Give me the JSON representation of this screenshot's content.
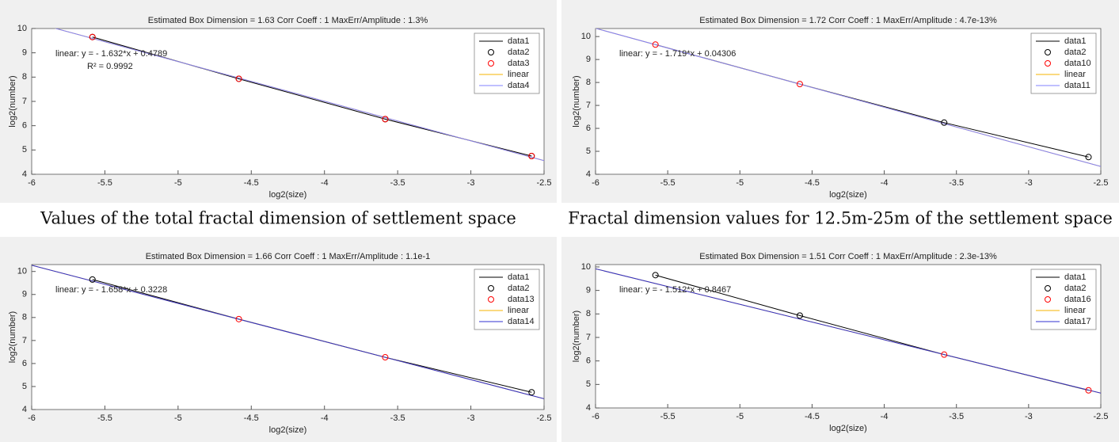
{
  "chart_data": [
    {
      "type": "line",
      "title": "Estimated Box Dimension =  1.63    Corr Coeff : 1    MaxErr/Amplitude : 1.3%",
      "xlabel": "log2(size)",
      "ylabel": "log2(number)",
      "annotations": [
        "linear: y = - 1.632*x + 0.4789",
        "R² = 0.9992"
      ],
      "caption": "Values of the total fractal dimension of settlement space",
      "xlim": [
        -6,
        -2.5
      ],
      "xticks": [
        -6,
        -5.5,
        -5,
        -4.5,
        -4,
        -3.5,
        -3,
        -2.5
      ],
      "ylim": [
        4,
        10
      ],
      "yticks": [
        4,
        5,
        6,
        7,
        8,
        9,
        10
      ],
      "legend": "upper right",
      "series": [
        {
          "name": "data1",
          "color": "#000000",
          "style": "line",
          "x": [
            -5.585,
            -4.585,
            -3.585,
            -2.585
          ],
          "values": [
            9.65,
            7.93,
            6.27,
            4.75
          ]
        },
        {
          "name": "data2",
          "color": "#000000",
          "style": "circle",
          "x": [
            -5.585,
            -4.585,
            -3.585,
            -2.585
          ],
          "values": [
            9.65,
            7.93,
            6.27,
            4.75
          ]
        },
        {
          "name": "data3",
          "color": "#ff0000",
          "style": "circle",
          "x": [
            -5.585,
            -4.585,
            -3.585,
            -2.585
          ],
          "values": [
            9.65,
            7.93,
            6.27,
            4.75
          ]
        },
        {
          "name": "linear",
          "color": "#f5b400",
          "style": "line",
          "x": [
            -6,
            -2.5
          ],
          "values": [
            10.27,
            4.56
          ]
        },
        {
          "name": "data4",
          "color": "#8080ff",
          "style": "line",
          "x": [
            -6,
            -2.5
          ],
          "values": [
            10.27,
            4.56
          ]
        }
      ]
    },
    {
      "type": "line",
      "title": "Estimated Box Dimension =  1.72    Corr Coeff : 1    MaxErr/Amplitude : 4.7e-13%",
      "xlabel": "log2(size)",
      "ylabel": "log2(number)",
      "annotations": [
        "linear: y = - 1.719*x + 0.04306"
      ],
      "caption": "Fractal dimension values for 12.5m-25m of the settlement space",
      "xlim": [
        -6,
        -2.5
      ],
      "xticks": [
        -6,
        -5.5,
        -5,
        -4.5,
        -4,
        -3.5,
        -3,
        -2.5
      ],
      "ylim": [
        4,
        10.35
      ],
      "yticks": [
        4,
        5,
        6,
        7,
        8,
        9,
        10
      ],
      "legend": "upper right",
      "series": [
        {
          "name": "data1",
          "color": "#000000",
          "style": "line",
          "x": [
            -5.585,
            -4.585,
            -3.585,
            -2.585
          ],
          "values": [
            9.65,
            7.93,
            6.25,
            4.75
          ]
        },
        {
          "name": "data2",
          "color": "#000000",
          "style": "circle",
          "x": [
            -3.585,
            -2.585
          ],
          "values": [
            6.25,
            4.75
          ]
        },
        {
          "name": "data10",
          "color": "#ff0000",
          "style": "circle",
          "x": [
            -5.585,
            -4.585
          ],
          "values": [
            9.65,
            7.93
          ]
        },
        {
          "name": "linear",
          "color": "#f5b400",
          "style": "line",
          "x": [
            -6,
            -2.5
          ],
          "values": [
            10.36,
            4.34
          ]
        },
        {
          "name": "data11",
          "color": "#8080ff",
          "style": "line",
          "x": [
            -6,
            -2.5
          ],
          "values": [
            10.36,
            4.34
          ]
        }
      ]
    },
    {
      "type": "line",
      "title": "Estimated Box Dimension =  1.66    Corr Coeff : 1    MaxErr/Amplitude : 1.1e-1",
      "xlabel": "log2(size)",
      "ylabel": "log2(number)",
      "annotations": [
        "linear: y = - 1.658*x + 0.3228"
      ],
      "xlim": [
        -6,
        -2.5
      ],
      "xticks": [
        -6,
        -5.5,
        -5,
        -4.5,
        -4,
        -3.5,
        -3,
        -2.5
      ],
      "ylim": [
        4,
        10.3
      ],
      "yticks": [
        4,
        5,
        6,
        7,
        8,
        9,
        10
      ],
      "legend": "upper right",
      "series": [
        {
          "name": "data1",
          "color": "#000000",
          "style": "line",
          "x": [
            -5.585,
            -4.585,
            -3.585,
            -2.585
          ],
          "values": [
            9.65,
            7.93,
            6.27,
            4.75
          ]
        },
        {
          "name": "data2",
          "color": "#000000",
          "style": "circle",
          "x": [
            -5.585,
            -2.585
          ],
          "values": [
            9.65,
            4.75
          ]
        },
        {
          "name": "data13",
          "color": "#ff0000",
          "style": "circle",
          "x": [
            -4.585,
            -3.585
          ],
          "values": [
            7.93,
            6.27
          ]
        },
        {
          "name": "linear",
          "color": "#f5b400",
          "style": "line",
          "x": [
            -6,
            -2.5
          ],
          "values": [
            10.27,
            4.47
          ]
        },
        {
          "name": "data14",
          "color": "#3030d0",
          "style": "line",
          "x": [
            -6,
            -2.5
          ],
          "values": [
            10.27,
            4.47
          ]
        }
      ]
    },
    {
      "type": "line",
      "title": "Estimated Box Dimension =  1.51    Corr Coeff : 1    MaxErr/Amplitude : 2.3e-13%",
      "xlabel": "log2(size)",
      "ylabel": "log2(number)",
      "annotations": [
        "linear: y = - 1.512*x + 0.8467"
      ],
      "xlim": [
        -6,
        -2.5
      ],
      "xticks": [
        -6,
        -5.5,
        -5,
        -4.5,
        -4,
        -3.5,
        -3,
        -2.5
      ],
      "ylim": [
        4,
        10.1
      ],
      "yticks": [
        4,
        5,
        6,
        7,
        8,
        9,
        10
      ],
      "legend": "upper right",
      "series": [
        {
          "name": "data1",
          "color": "#000000",
          "style": "line",
          "x": [
            -5.585,
            -4.585,
            -3.585,
            -2.585
          ],
          "values": [
            9.65,
            7.93,
            6.27,
            4.75
          ]
        },
        {
          "name": "data2",
          "color": "#000000",
          "style": "circle",
          "x": [
            -5.585,
            -4.585
          ],
          "values": [
            9.65,
            7.93
          ]
        },
        {
          "name": "data16",
          "color": "#ff0000",
          "style": "circle",
          "x": [
            -3.585,
            -2.585
          ],
          "values": [
            6.27,
            4.75
          ]
        },
        {
          "name": "linear",
          "color": "#f5b400",
          "style": "line",
          "x": [
            -6,
            -2.5
          ],
          "values": [
            9.92,
            4.63
          ]
        },
        {
          "name": "data17",
          "color": "#3030d0",
          "style": "line",
          "x": [
            -6,
            -2.5
          ],
          "values": [
            9.92,
            4.63
          ]
        }
      ]
    }
  ]
}
